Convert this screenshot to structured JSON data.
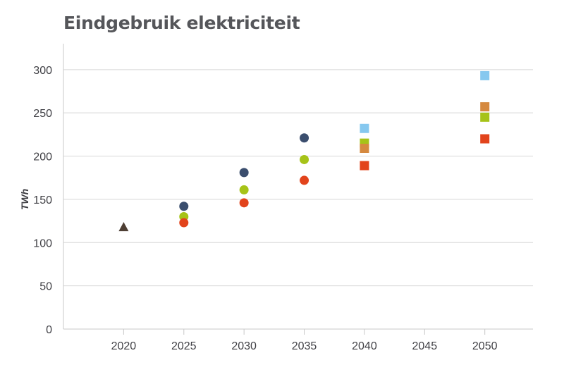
{
  "chart_data": {
    "type": "scatter",
    "title": "Eindgebruik elektriciteit",
    "xlabel": "",
    "ylabel": "TWh",
    "xlim": [
      2015,
      2054
    ],
    "ylim": [
      0,
      330
    ],
    "x_ticks": [
      2020,
      2025,
      2030,
      2035,
      2040,
      2045,
      2050
    ],
    "y_ticks": [
      0,
      50,
      100,
      150,
      200,
      250,
      300
    ],
    "grid": true,
    "series": [
      {
        "marker": "triangle",
        "color": "#4e3f34",
        "points": [
          [
            2020,
            118
          ]
        ]
      },
      {
        "marker": "circle",
        "color": "#3b4e6e",
        "points": [
          [
            2025,
            142
          ],
          [
            2030,
            181
          ],
          [
            2035,
            221
          ]
        ]
      },
      {
        "marker": "circle",
        "color": "#a6c318",
        "points": [
          [
            2025,
            130
          ],
          [
            2030,
            161
          ],
          [
            2035,
            196
          ]
        ]
      },
      {
        "marker": "circle",
        "color": "#e2441c",
        "points": [
          [
            2025,
            123
          ],
          [
            2030,
            146
          ],
          [
            2035,
            172
          ]
        ]
      },
      {
        "marker": "square",
        "color": "#86c8ef",
        "points": [
          [
            2040,
            232
          ],
          [
            2050,
            293
          ]
        ]
      },
      {
        "marker": "square",
        "color": "#a6c318",
        "points": [
          [
            2040,
            215
          ],
          [
            2050,
            245
          ]
        ]
      },
      {
        "marker": "square",
        "color": "#d5893f",
        "points": [
          [
            2040,
            209
          ],
          [
            2050,
            257
          ]
        ]
      },
      {
        "marker": "square",
        "color": "#e2441c",
        "points": [
          [
            2040,
            189
          ],
          [
            2050,
            220
          ]
        ]
      }
    ]
  }
}
